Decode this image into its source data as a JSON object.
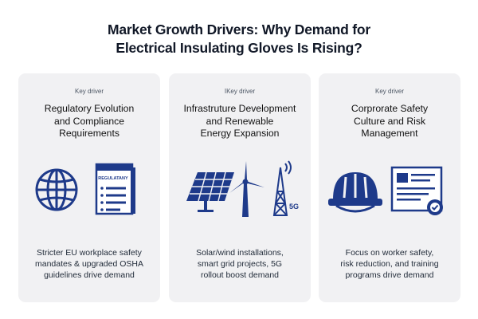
{
  "title_line1": "Market Growth Drivers: Why Demand for",
  "title_line2": "Electrical Insulating Gloves Is Rising?",
  "colors": {
    "accent": "#1e3a8a",
    "card_bg": "#f1f1f3"
  },
  "cards": [
    {
      "label": "Key driver",
      "heading": [
        "Regulatory Evolution",
        "and Compliance",
        "Requirements"
      ],
      "icons": [
        "globe-icon",
        "regulatory-document-icon"
      ],
      "doc_label": "REGULATANY",
      "description": [
        "Stricter EU workplace safety",
        "mandates & upgraded OSHA",
        "guidelines drive demand"
      ]
    },
    {
      "label": "IKey driver",
      "heading": [
        "Infrastruture Development",
        "and Renewable",
        "Energy Expansion"
      ],
      "icons": [
        "solar-panel-icon",
        "wind-turbine-icon",
        "5g-tower-icon"
      ],
      "tower_label": "5G",
      "description": [
        "Solar/wind installations,",
        "smart grid projects, 5G",
        "rollout boost demand"
      ]
    },
    {
      "label": "Key driver",
      "heading": [
        "Corprorate Safety",
        "Culture and Risk",
        "Management"
      ],
      "icons": [
        "hard-hat-icon",
        "certificate-icon"
      ],
      "description": [
        "Focus on worker safety,",
        "risk reduction, and training",
        "programs drive demand"
      ]
    }
  ]
}
